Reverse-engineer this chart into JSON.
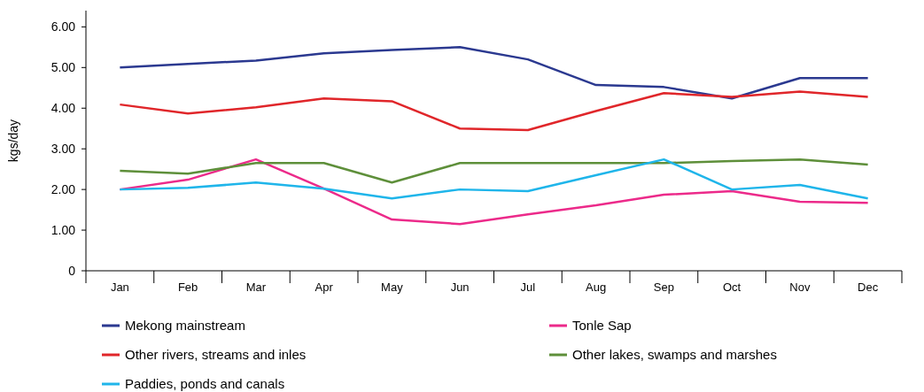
{
  "chart_data": {
    "type": "line",
    "ylabel": "kgs/day",
    "categories": [
      "Jan",
      "Feb",
      "Mar",
      "Apr",
      "May",
      "Jun",
      "Jul",
      "Aug",
      "Sep",
      "Oct",
      "Nov",
      "Dec"
    ],
    "series": [
      {
        "name": "Mekong mainstream",
        "color": "#2b3990",
        "values": [
          5.0,
          5.09,
          5.17,
          5.35,
          5.43,
          5.5,
          5.2,
          4.57,
          4.52,
          4.24,
          4.74,
          4.74
        ]
      },
      {
        "name": "Tonle Sap",
        "color": "#ec2a8a",
        "values": [
          2.0,
          2.24,
          2.74,
          2.02,
          1.26,
          1.15,
          1.39,
          1.61,
          1.87,
          1.96,
          1.7,
          1.67
        ]
      },
      {
        "name": "Other rivers, streams and inles",
        "color": "#e0262a",
        "values": [
          4.09,
          3.87,
          4.02,
          4.24,
          4.17,
          3.5,
          3.46,
          3.93,
          4.37,
          4.28,
          4.41,
          4.28
        ]
      },
      {
        "name": "Other lakes, swamps and marshes",
        "color": "#5e8f3a",
        "values": [
          2.46,
          2.39,
          2.65,
          2.65,
          2.17,
          2.65,
          2.65,
          2.65,
          2.65,
          2.7,
          2.74,
          2.61
        ]
      },
      {
        "name": "Paddies, ponds and canals",
        "color": "#1fb5ea",
        "values": [
          2.0,
          2.04,
          2.17,
          2.02,
          1.78,
          2.0,
          1.96,
          2.35,
          2.74,
          2.0,
          2.11,
          1.78
        ]
      }
    ],
    "ylim": [
      0,
      6.4
    ],
    "yticks": [
      {
        "value": 0,
        "label": "0"
      },
      {
        "value": 1,
        "label": "1.00"
      },
      {
        "value": 2,
        "label": "2.00"
      },
      {
        "value": 3,
        "label": "3.00"
      },
      {
        "value": 4,
        "label": "4.00"
      },
      {
        "value": 5,
        "label": "5.00"
      },
      {
        "value": 6,
        "label": "6.00"
      }
    ],
    "legend": "bottom",
    "grid": false,
    "marker": "none",
    "line_style": "solid"
  }
}
